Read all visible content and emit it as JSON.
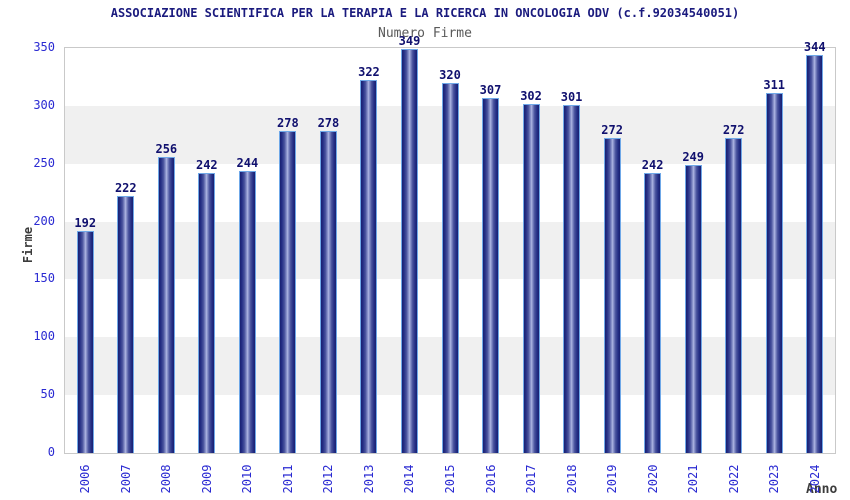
{
  "chart_data": {
    "type": "bar",
    "title": "ASSOCIAZIONE SCIENTIFICA PER LA TERAPIA E LA RICERCA IN ONCOLOGIA ODV (c.f.92034540051)",
    "subtitle": "Numero Firme",
    "xlabel": "Anno",
    "ylabel": "Firme",
    "categories": [
      "2006",
      "2007",
      "2008",
      "2009",
      "2010",
      "2011",
      "2012",
      "2013",
      "2014",
      "2015",
      "2016",
      "2017",
      "2018",
      "2019",
      "2020",
      "2021",
      "2022",
      "2023",
      "2024"
    ],
    "values": [
      192,
      222,
      256,
      242,
      244,
      278,
      278,
      322,
      349,
      320,
      307,
      302,
      301,
      272,
      242,
      249,
      272,
      311,
      344
    ],
    "ylim": [
      0,
      350
    ],
    "y_ticks": [
      0,
      50,
      100,
      150,
      200,
      250,
      300,
      350
    ],
    "legend": "none",
    "grid": "alternating-horizontal-bands",
    "band_pattern": "white from 350-300, gray 300-250, alternating every 50 down to 0",
    "colors": {
      "title": "#1a1a7e",
      "subtitle": "#5a5a5a",
      "tick_labels": "#2a2ad2",
      "value_labels": "#10106e",
      "axis_titles": "#3c3c3c",
      "bar_edge_dark": "#1a2170",
      "bar_center_light": "#b4bce6",
      "bar_outline": "#6fa8e8",
      "band_gray": "#f0f0f0",
      "plot_border": "#c9c9c9",
      "background": "#ffffff"
    }
  }
}
